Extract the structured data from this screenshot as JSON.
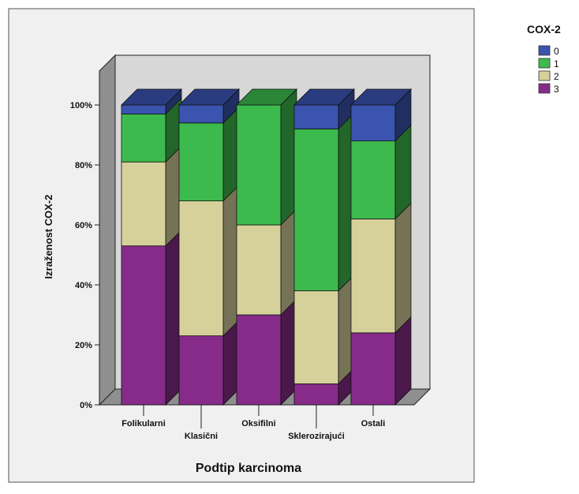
{
  "chart_data": {
    "type": "bar",
    "stacked": true,
    "three_d": true,
    "categories": [
      "Folikularni",
      "Klasični",
      "Oksifilni",
      "Sklerozirajući",
      "Ostali"
    ],
    "series": [
      {
        "name": "3",
        "values": [
          53,
          23,
          30,
          7,
          24
        ],
        "color": "#862b89"
      },
      {
        "name": "2",
        "values": [
          28,
          45,
          30,
          31,
          38
        ],
        "color": "#d6d09b"
      },
      {
        "name": "1",
        "values": [
          16,
          26,
          40,
          54,
          26
        ],
        "color": "#3dba4d"
      },
      {
        "name": "0",
        "values": [
          3,
          6,
          0,
          8,
          12
        ],
        "color": "#3b54b0"
      }
    ],
    "xlabel": "Podtip karcinoma",
    "ylabel": "Izraženost COX-2",
    "ylim": [
      0,
      100
    ],
    "yticks": [
      0,
      20,
      40,
      60,
      80,
      100
    ],
    "ytick_labels": [
      "0%",
      "20%",
      "40%",
      "60%",
      "80%",
      "100%"
    ],
    "legend": {
      "title": "COX-2",
      "placement": "right",
      "entries": [
        "0",
        "1",
        "2",
        "3"
      ]
    },
    "grid": false
  }
}
